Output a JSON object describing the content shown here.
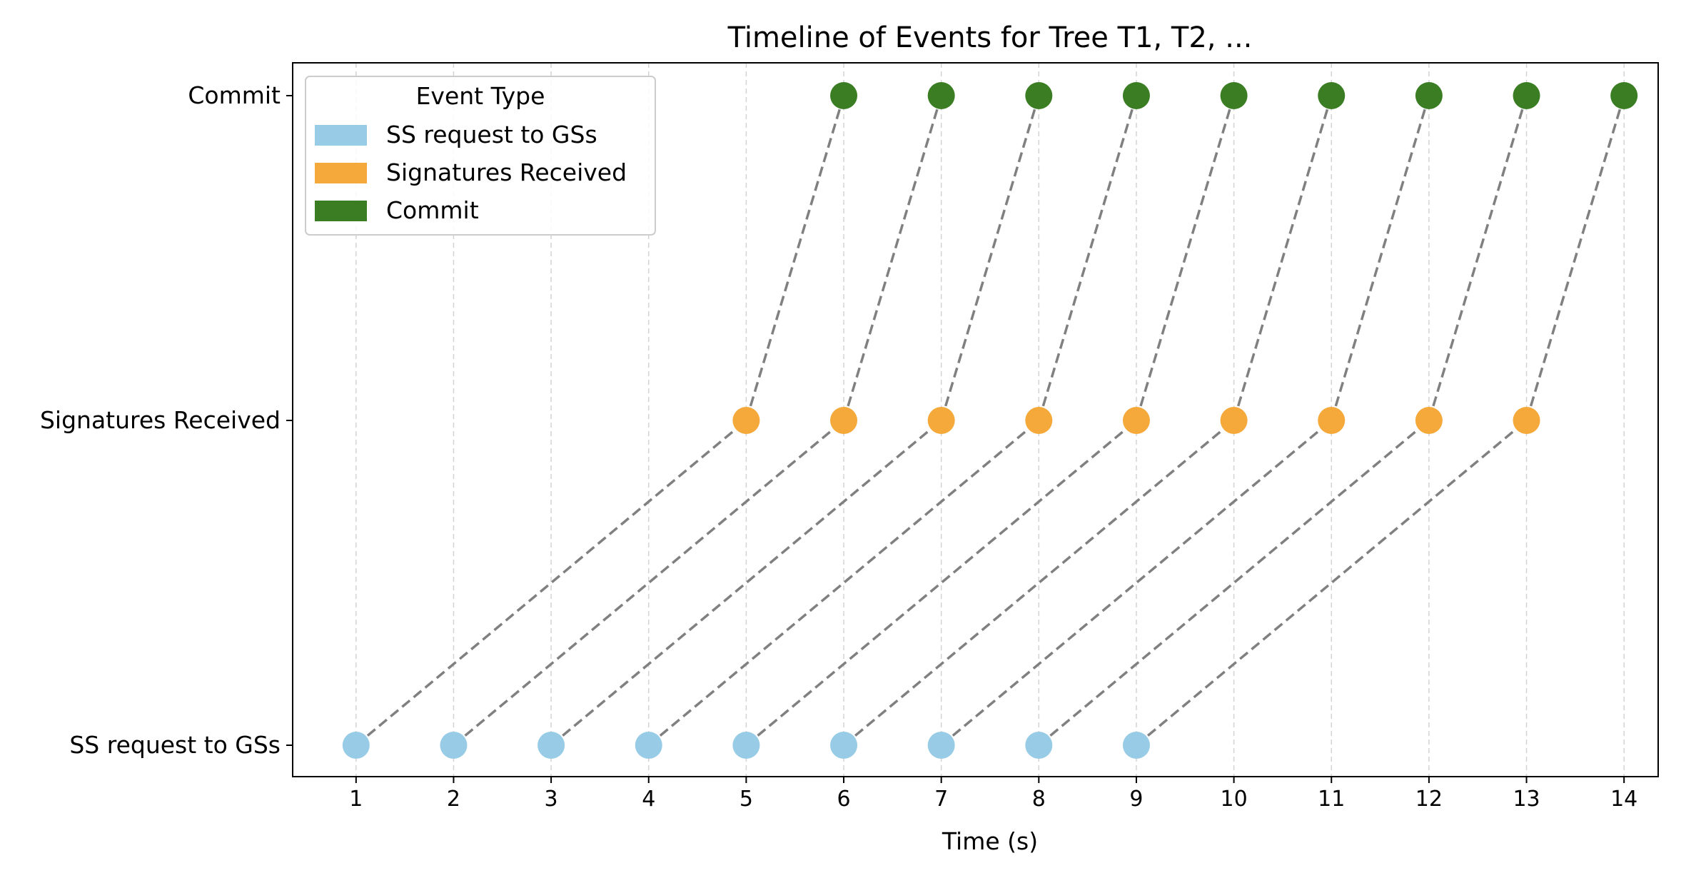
{
  "chart_data": {
    "type": "scatter",
    "title": "Timeline of Events for Tree T1, T2, ...",
    "xlabel": "Time (s)",
    "ylabel": "",
    "x_ticks": [
      1,
      2,
      3,
      4,
      5,
      6,
      7,
      8,
      9,
      10,
      11,
      12,
      13,
      14
    ],
    "xlim": [
      0.35,
      14.35
    ],
    "categories": [
      "SS request to GSs",
      "Signatures Received",
      "Commit"
    ],
    "grid": "vertical dashed at x ticks",
    "legend": {
      "title": "Event Type",
      "placement": "top-left",
      "entries": [
        "SS request to GSs",
        "Signatures Received",
        "Commit"
      ]
    },
    "series": [
      {
        "name": "SS request to GSs",
        "color": "#97cbe6",
        "category": "SS request to GSs",
        "x": [
          1,
          2,
          3,
          4,
          5,
          6,
          7,
          8,
          9
        ]
      },
      {
        "name": "Signatures Received",
        "color": "#f4a93a",
        "category": "Signatures Received",
        "x": [
          5,
          6,
          7,
          8,
          9,
          10,
          11,
          12,
          13
        ]
      },
      {
        "name": "Commit",
        "color": "#3a7d22",
        "category": "Commit",
        "x": [
          6,
          7,
          8,
          9,
          10,
          11,
          12,
          13,
          14
        ]
      }
    ],
    "arrows": [
      {
        "from": {
          "x": 1,
          "event": "SS request to GSs"
        },
        "to": {
          "x": 5,
          "event": "Signatures Received"
        }
      },
      {
        "from": {
          "x": 2,
          "event": "SS request to GSs"
        },
        "to": {
          "x": 6,
          "event": "Signatures Received"
        }
      },
      {
        "from": {
          "x": 3,
          "event": "SS request to GSs"
        },
        "to": {
          "x": 7,
          "event": "Signatures Received"
        }
      },
      {
        "from": {
          "x": 4,
          "event": "SS request to GSs"
        },
        "to": {
          "x": 8,
          "event": "Signatures Received"
        }
      },
      {
        "from": {
          "x": 5,
          "event": "SS request to GSs"
        },
        "to": {
          "x": 9,
          "event": "Signatures Received"
        }
      },
      {
        "from": {
          "x": 6,
          "event": "SS request to GSs"
        },
        "to": {
          "x": 10,
          "event": "Signatures Received"
        }
      },
      {
        "from": {
          "x": 7,
          "event": "SS request to GSs"
        },
        "to": {
          "x": 11,
          "event": "Signatures Received"
        }
      },
      {
        "from": {
          "x": 8,
          "event": "SS request to GSs"
        },
        "to": {
          "x": 12,
          "event": "Signatures Received"
        }
      },
      {
        "from": {
          "x": 9,
          "event": "SS request to GSs"
        },
        "to": {
          "x": 13,
          "event": "Signatures Received"
        }
      },
      {
        "from": {
          "x": 5,
          "event": "Signatures Received"
        },
        "to": {
          "x": 6,
          "event": "Commit"
        }
      },
      {
        "from": {
          "x": 6,
          "event": "Signatures Received"
        },
        "to": {
          "x": 7,
          "event": "Commit"
        }
      },
      {
        "from": {
          "x": 7,
          "event": "Signatures Received"
        },
        "to": {
          "x": 8,
          "event": "Commit"
        }
      },
      {
        "from": {
          "x": 8,
          "event": "Signatures Received"
        },
        "to": {
          "x": 9,
          "event": "Commit"
        }
      },
      {
        "from": {
          "x": 9,
          "event": "Signatures Received"
        },
        "to": {
          "x": 10,
          "event": "Commit"
        }
      },
      {
        "from": {
          "x": 10,
          "event": "Signatures Received"
        },
        "to": {
          "x": 11,
          "event": "Commit"
        }
      },
      {
        "from": {
          "x": 11,
          "event": "Signatures Received"
        },
        "to": {
          "x": 12,
          "event": "Commit"
        }
      },
      {
        "from": {
          "x": 12,
          "event": "Signatures Received"
        },
        "to": {
          "x": 13,
          "event": "Commit"
        }
      },
      {
        "from": {
          "x": 13,
          "event": "Signatures Received"
        },
        "to": {
          "x": 14,
          "event": "Commit"
        }
      }
    ],
    "arrow_color": "#808080",
    "grid_color": "#d3d3d3"
  }
}
